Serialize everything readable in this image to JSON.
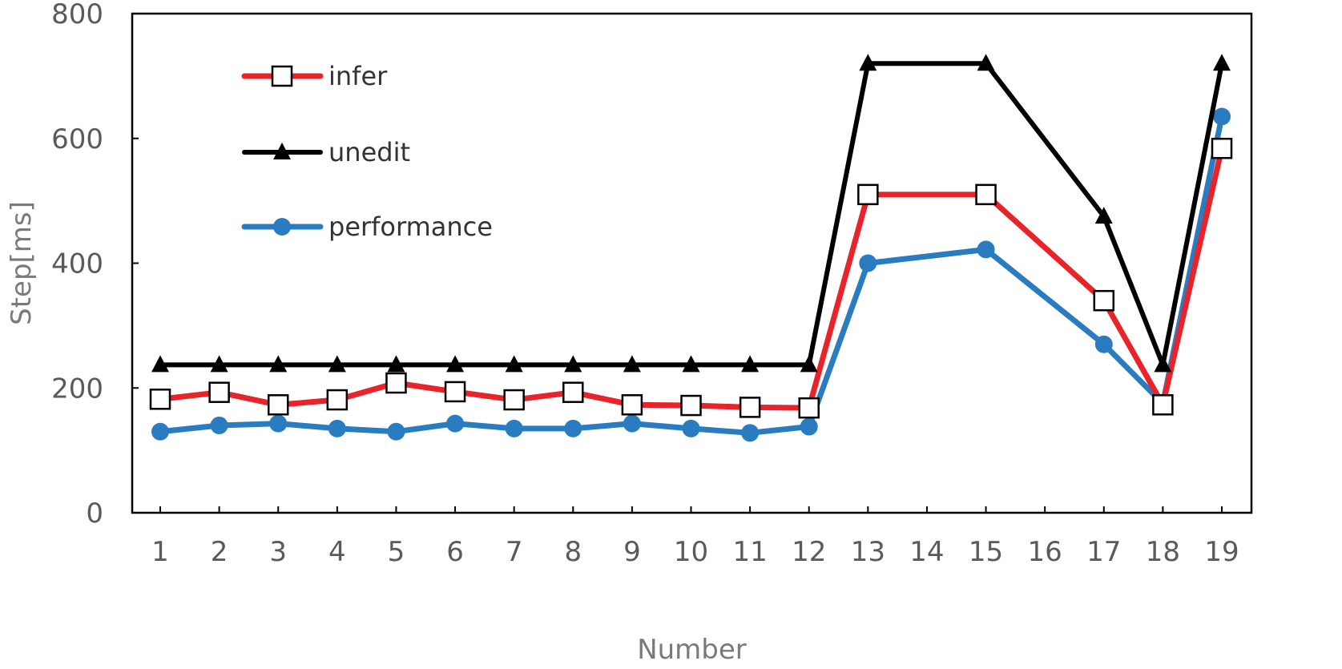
{
  "chart_data": {
    "type": "line",
    "title": "",
    "xlabel": "Number",
    "ylabel": "Step[ms]",
    "x": [
      "1",
      "2",
      "3",
      "4",
      "5",
      "6",
      "7",
      "8",
      "9",
      "10",
      "11",
      "12",
      "13",
      "14",
      "15",
      "16",
      "17",
      "18",
      "19"
    ],
    "ylim": [
      0,
      800
    ],
    "yticks": [
      0,
      200,
      400,
      600,
      800
    ],
    "grid": false,
    "legend": "top-left",
    "series": [
      {
        "name": "infer",
        "color": "#e8232a",
        "marker": "square-open",
        "values": [
          182,
          193,
          173,
          181,
          208,
          194,
          181,
          193,
          173,
          172,
          169,
          168,
          510,
          null,
          510,
          null,
          340,
          173,
          584
        ]
      },
      {
        "name": "unedit",
        "color": "#000000",
        "marker": "triangle",
        "values": [
          237,
          237,
          237,
          237,
          237,
          237,
          237,
          237,
          237,
          237,
          237,
          237,
          720,
          null,
          720,
          null,
          475,
          237,
          720
        ]
      },
      {
        "name": "performance",
        "color": "#2a7cc0",
        "marker": "circle",
        "values": [
          130,
          140,
          143,
          135,
          130,
          143,
          135,
          135,
          143,
          135,
          128,
          138,
          400,
          null,
          422,
          null,
          270,
          175,
          635
        ]
      }
    ]
  }
}
